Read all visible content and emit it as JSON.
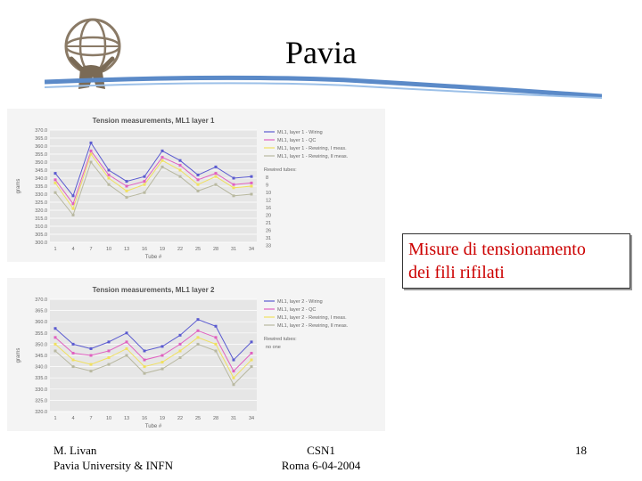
{
  "slide": {
    "title": "Pavia"
  },
  "callout": {
    "line1": "Misure di tensionamento",
    "line2": "dei fili rifilati"
  },
  "footer": {
    "author": "M. Livan",
    "affiliation": "Pavia University & INFN",
    "event": "CSN1",
    "place_date": "Roma 6-04-2004",
    "page": "18"
  },
  "chart_data": [
    {
      "type": "line",
      "title": "Tension measurements, ML1 layer 1",
      "xlabel": "Tube #",
      "ylabel": "grams",
      "ylim": [
        300,
        370
      ],
      "yticks": [
        "300.0",
        "305.0",
        "310.0",
        "315.0",
        "320.0",
        "325.0",
        "330.0",
        "335.0",
        "340.0",
        "345.0",
        "350.0",
        "355.0",
        "360.0",
        "365.0",
        "370.0"
      ],
      "x": [
        1,
        4,
        7,
        10,
        13,
        16,
        19,
        22,
        25,
        28,
        31,
        34
      ],
      "legend_position": "right",
      "series": [
        {
          "name": "ML1, layer 1 - Wiring",
          "color": "#5a5ad0",
          "marker": "diamond",
          "values": [
            343,
            329,
            362,
            345,
            338,
            341,
            357,
            351,
            342,
            347,
            340,
            341
          ]
        },
        {
          "name": "ML1, layer 1 - QC",
          "color": "#e060c0",
          "marker": "square",
          "values": [
            339,
            324,
            357,
            342,
            335,
            338,
            353,
            348,
            339,
            343,
            336,
            337
          ]
        },
        {
          "name": "ML1, layer 1 - Rewiring, I meas.",
          "color": "#f0e060",
          "marker": "triangle",
          "values": [
            337,
            321,
            355,
            340,
            332,
            336,
            351,
            345,
            336,
            341,
            334,
            335
          ]
        },
        {
          "name": "ML1, layer 1 - Rewiring, II meas.",
          "color": "#b8b8a0",
          "marker": "x",
          "values": [
            331,
            317,
            350,
            336,
            328,
            331,
            347,
            341,
            332,
            336,
            329,
            330
          ]
        }
      ],
      "side_note": {
        "header": "Rewired tubes:",
        "tubes": [
          "8",
          "9",
          "10",
          "12",
          "16",
          "20",
          "21",
          "26",
          "31",
          "33"
        ]
      }
    },
    {
      "type": "line",
      "title": "Tension measurements, ML1 layer 2",
      "xlabel": "Tube #",
      "ylabel": "grams",
      "ylim": [
        320,
        370
      ],
      "yticks": [
        "320.0",
        "325.0",
        "330.0",
        "335.0",
        "340.0",
        "345.0",
        "350.0",
        "355.0",
        "360.0",
        "365.0",
        "370.0"
      ],
      "x": [
        1,
        4,
        7,
        10,
        13,
        16,
        19,
        22,
        25,
        28,
        31,
        34
      ],
      "legend_position": "right",
      "series": [
        {
          "name": "ML1, layer 2 - Wiring",
          "color": "#5a5ad0",
          "marker": "diamond",
          "values": [
            357,
            350,
            348,
            351,
            355,
            347,
            349,
            354,
            361,
            358,
            343,
            351
          ]
        },
        {
          "name": "ML1, layer 2 - QC",
          "color": "#e060c0",
          "marker": "square",
          "values": [
            353,
            346,
            345,
            347,
            351,
            343,
            345,
            350,
            356,
            353,
            338,
            346
          ]
        },
        {
          "name": "ML1, layer 2 - Rewiring, I meas.",
          "color": "#f0e060",
          "marker": "triangle",
          "values": [
            350,
            343,
            341,
            344,
            348,
            340,
            342,
            347,
            353,
            350,
            335,
            343
          ]
        },
        {
          "name": "ML1, layer 2 - Rewiring, II meas.",
          "color": "#b8b8a0",
          "marker": "x",
          "values": [
            347,
            340,
            338,
            341,
            345,
            337,
            339,
            344,
            350,
            347,
            332,
            340
          ]
        }
      ],
      "side_note": {
        "header": "Rewired tubes:",
        "tubes": [
          "no one"
        ]
      }
    }
  ]
}
